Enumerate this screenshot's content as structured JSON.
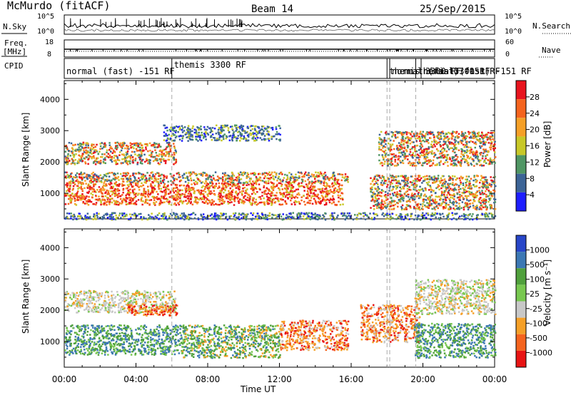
{
  "header": {
    "station": "McMurdo (fitACF)",
    "beam": "Beam 14",
    "date": "25/Sep/2015"
  },
  "strip_panels": {
    "nsky": {
      "label": "N.Sky",
      "ticks_left": [
        "10^5",
        "10^0"
      ],
      "ticks_right": [
        "10^5",
        "10^0"
      ],
      "right_label": "N.Search"
    },
    "freq": {
      "label": "Freq.",
      "unit": "[MHz]",
      "ticks_left": [
        "18",
        "8"
      ],
      "ticks_right": [
        "60",
        "0"
      ],
      "right_label": "Nave"
    },
    "cpid": {
      "label": "CPID",
      "segments": [
        {
          "start_hour": 0.0,
          "label": "normal (fast) -151 RF"
        },
        {
          "start_hour": 6.0,
          "label": "themis 3300 RF"
        },
        {
          "start_hour": 18.0,
          "label": "themis 3300 RF"
        },
        {
          "start_hour": 18.15,
          "label": "normal (fast) -151 RF"
        },
        {
          "start_hour": 19.6,
          "label": "themis 3300 RF"
        },
        {
          "start_hour": 19.9,
          "label": "normal (fast) -151 RF"
        }
      ]
    }
  },
  "chart_data": [
    {
      "type": "heatmap",
      "panel": "power",
      "ylabel": "Slant Range [km]",
      "xlabel": "",
      "xlim": [
        0,
        24
      ],
      "ylim": [
        180,
        4600
      ],
      "yticks": [
        1000,
        2000,
        3000,
        4000
      ],
      "colorbar": {
        "label": "Power [dB]",
        "ticks": [
          "28",
          "24",
          "20",
          "16",
          "12",
          "8",
          "4"
        ],
        "colors": [
          "#e8141e",
          "#f5641e",
          "#f5a028",
          "#c8c828",
          "#509664",
          "#3c6496",
          "#1e1eff"
        ]
      },
      "scatter_regions": [
        {
          "x": [
            0.0,
            15.5
          ],
          "y": [
            650,
            1350
          ],
          "level": "high"
        },
        {
          "x": [
            0.0,
            15.8
          ],
          "y": [
            1350,
            1700
          ],
          "level": "mid"
        },
        {
          "x": [
            0.0,
            6.2
          ],
          "y": [
            1950,
            2650
          ],
          "level": "mid"
        },
        {
          "x": [
            5.5,
            12.0
          ],
          "y": [
            2700,
            3200
          ],
          "level": "low"
        },
        {
          "x": [
            17.0,
            24.0
          ],
          "y": [
            500,
            1600
          ],
          "level": "mid"
        },
        {
          "x": [
            17.5,
            24.0
          ],
          "y": [
            1900,
            3000
          ],
          "level": "mid"
        },
        {
          "x": [
            0.0,
            24.0
          ],
          "y": [
            180,
            400
          ],
          "level": "low"
        }
      ]
    },
    {
      "type": "heatmap",
      "panel": "velocity",
      "ylabel": "Slant Range [km]",
      "xlabel": "Time UT",
      "xlim": [
        0,
        24
      ],
      "ylim": [
        180,
        4600
      ],
      "yticks": [
        1000,
        2000,
        3000,
        4000
      ],
      "xticks": [
        "00:00",
        "04:00",
        "08:00",
        "12:00",
        "16:00",
        "20:00",
        "00:00"
      ],
      "colorbar": {
        "label": "Velocity [m s⁻¹]",
        "ticks": [
          "1000",
          "500",
          "100",
          "25",
          "-25",
          "-100",
          "-500",
          "-1000"
        ],
        "colors": [
          "#2846c8",
          "#3c78b4",
          "#50a03c",
          "#78c850",
          "#c8c8c8",
          "#f5a028",
          "#f5641e",
          "#e81414"
        ]
      },
      "scatter_regions": [
        {
          "x": [
            0.0,
            6.5
          ],
          "y": [
            600,
            1550
          ],
          "level": "toward_fast"
        },
        {
          "x": [
            6.5,
            12.0
          ],
          "y": [
            500,
            1550
          ],
          "level": "mixed_green"
        },
        {
          "x": [
            12.0,
            15.8
          ],
          "y": [
            750,
            1700
          ],
          "level": "away"
        },
        {
          "x": [
            0.0,
            6.2
          ],
          "y": [
            1950,
            2650
          ],
          "level": "near_zero"
        },
        {
          "x": [
            3.5,
            6.3
          ],
          "y": [
            1850,
            2200
          ],
          "level": "away_fast"
        },
        {
          "x": [
            16.5,
            19.8
          ],
          "y": [
            1000,
            2200
          ],
          "level": "away"
        },
        {
          "x": [
            19.5,
            24.0
          ],
          "y": [
            500,
            1600
          ],
          "level": "toward_fast"
        },
        {
          "x": [
            19.5,
            24.0
          ],
          "y": [
            1900,
            3000
          ],
          "level": "near_zero"
        }
      ]
    }
  ]
}
